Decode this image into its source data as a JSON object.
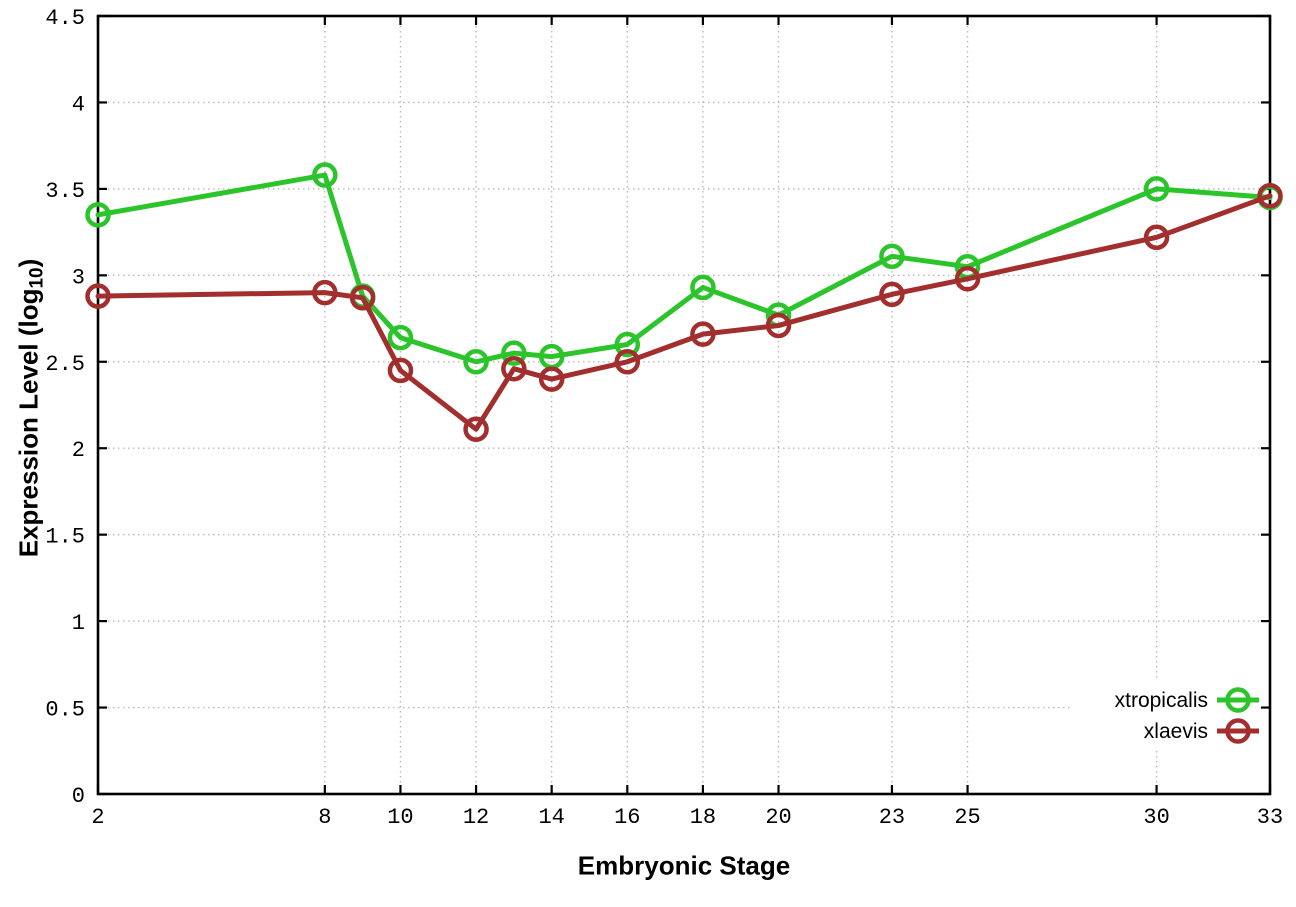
{
  "figure": {
    "xlabel": "Embryonic Stage",
    "ylabel_prefix": "Expression Level (log",
    "ylabel_sub": "10",
    "ylabel_suffix": ")"
  },
  "chart_data": {
    "type": "line",
    "title": "",
    "xlabel": "Embryonic Stage",
    "ylabel": "Expression Level (log10)",
    "x": [
      2,
      8,
      9,
      10,
      12,
      13,
      14,
      16,
      18,
      20,
      23,
      25,
      30,
      33
    ],
    "series": [
      {
        "name": "xtropicalis",
        "color": "#2bc52b",
        "values": [
          3.35,
          3.58,
          2.88,
          2.64,
          2.5,
          2.55,
          2.53,
          2.6,
          2.93,
          2.77,
          3.11,
          3.05,
          3.5,
          3.45
        ]
      },
      {
        "name": "xlaevis",
        "color": "#a32e2e",
        "values": [
          2.88,
          2.9,
          2.87,
          2.45,
          2.11,
          2.46,
          2.4,
          2.5,
          2.66,
          2.71,
          2.89,
          2.98,
          3.22,
          3.46
        ]
      }
    ],
    "xticks": [
      2,
      8,
      10,
      12,
      14,
      16,
      18,
      20,
      23,
      25,
      30,
      33
    ],
    "yticks": [
      0,
      0.5,
      1,
      1.5,
      2,
      2.5,
      3,
      3.5,
      4,
      4.5
    ],
    "xlim": [
      2,
      33
    ],
    "ylim": [
      0,
      4.5
    ],
    "grid": true,
    "grid_style": "dotted",
    "marker": "open-circle",
    "legend_position": "bottom-right-inside",
    "legend_entries": [
      "xtropicalis",
      "xlaevis"
    ]
  },
  "styles": {
    "background": "#ffffff",
    "grid_color": "#b9b9b9",
    "axis_color": "#000000",
    "text_color": "#000000"
  }
}
